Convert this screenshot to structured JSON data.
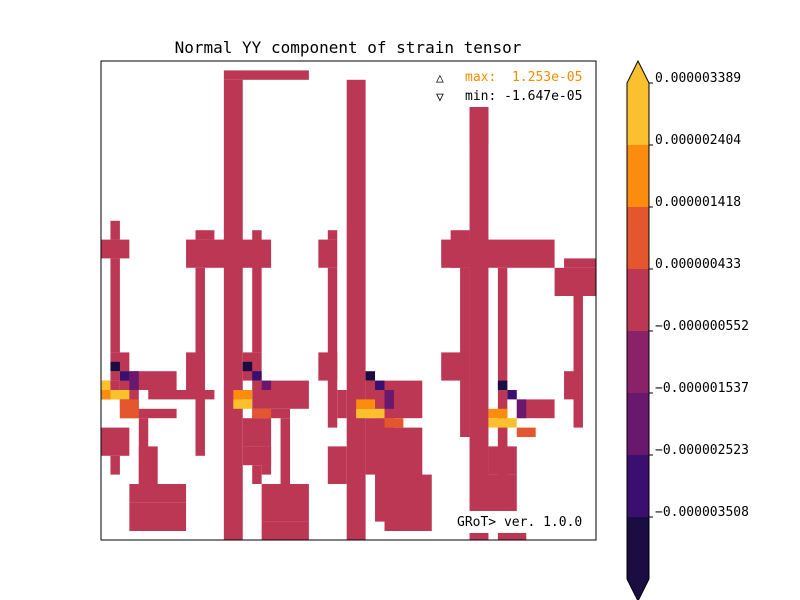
{
  "chart_data": {
    "type": "heatmap",
    "title": "Normal YY component of strain tensor",
    "max_label": "max:  1.253e-05",
    "min_label": "min: -1.647e-05",
    "max_symbol": "△",
    "min_symbol": "▽",
    "version_label": "GRoT> ver. 1.0.0",
    "colorbar": {
      "tick_labels": [
        "0.000003389",
        "0.000002404",
        "0.000001418",
        "0.000000433",
        "−0.000000552",
        "−0.000001537",
        "−0.000002523",
        "−0.000003508"
      ],
      "colors": [
        "#fbc02d",
        "#fb8c0e",
        "#e4572e",
        "#bc3754",
        "#8a226a",
        "#6a176e",
        "#3b0f70",
        "#1b0c41"
      ],
      "extend": "both"
    },
    "grid_size": [
      53,
      51
    ],
    "background_level": 4,
    "cell_groups": [
      {
        "level": 4,
        "cells": [
          [
            13,
            1,
            21,
            1
          ],
          [
            13,
            2,
            14,
            50
          ],
          [
            26,
            2,
            27,
            50
          ],
          [
            39,
            2,
            40,
            50
          ],
          [
            39,
            3,
            40,
            8
          ],
          [
            53,
            5,
            54,
            46
          ],
          [
            1,
            17,
            1,
            18
          ],
          [
            0,
            19,
            2,
            20
          ],
          [
            1,
            21,
            1,
            30
          ],
          [
            1,
            31,
            2,
            32
          ],
          [
            2,
            33,
            7,
            34
          ],
          [
            2,
            35,
            3,
            36
          ],
          [
            5,
            35,
            11,
            35
          ],
          [
            2,
            37,
            7,
            37
          ],
          [
            0,
            39,
            2,
            41
          ],
          [
            1,
            42,
            1,
            43
          ],
          [
            4,
            38,
            4,
            44
          ],
          [
            4,
            41,
            5,
            44
          ],
          [
            3,
            45,
            8,
            46
          ],
          [
            3,
            47,
            8,
            49
          ],
          [
            10,
            18,
            11,
            18
          ],
          [
            9,
            19,
            17,
            21
          ],
          [
            10,
            22,
            10,
            41
          ],
          [
            9,
            31,
            10,
            34
          ],
          [
            16,
            18,
            16,
            30
          ],
          [
            15,
            31,
            16,
            33
          ],
          [
            16,
            34,
            21,
            36
          ],
          [
            16,
            37,
            19,
            37
          ],
          [
            15,
            38,
            17,
            40
          ],
          [
            15,
            41,
            17,
            42
          ],
          [
            16,
            43,
            16,
            44
          ],
          [
            17,
            41,
            17,
            43
          ],
          [
            19,
            38,
            19,
            47
          ],
          [
            17,
            45,
            21,
            48
          ],
          [
            17,
            49,
            21,
            50
          ],
          [
            23,
            19,
            24,
            21
          ],
          [
            24,
            18,
            24,
            18
          ],
          [
            24,
            22,
            24,
            38
          ],
          [
            23,
            31,
            24,
            33
          ],
          [
            28,
            34,
            33,
            37
          ],
          [
            28,
            38,
            30,
            43
          ],
          [
            25,
            35,
            25,
            37
          ],
          [
            24,
            41,
            25,
            44
          ],
          [
            29,
            38,
            30,
            48
          ],
          [
            30,
            39,
            33,
            49
          ],
          [
            31,
            44,
            34,
            49
          ],
          [
            37,
            18,
            38,
            21
          ],
          [
            36,
            19,
            47,
            21
          ],
          [
            38,
            22,
            38,
            39
          ],
          [
            36,
            31,
            38,
            33
          ],
          [
            42,
            22,
            42,
            40
          ],
          [
            44,
            36,
            47,
            37
          ],
          [
            42,
            38,
            42,
            47
          ],
          [
            41,
            41,
            43,
            43
          ],
          [
            40,
            44,
            43,
            49
          ],
          [
            42,
            50,
            44,
            50
          ],
          [
            49,
            21,
            55,
            21
          ],
          [
            48,
            22,
            56,
            24
          ],
          [
            50,
            25,
            50,
            38
          ],
          [
            49,
            33,
            50,
            35
          ],
          [
            54,
            32,
            59,
            37
          ],
          [
            56,
            35,
            56,
            46
          ],
          [
            55,
            38,
            56,
            42
          ],
          [
            53,
            43,
            56,
            46
          ],
          [
            57,
            36,
            60,
            38
          ],
          [
            59,
            43,
            62,
            46
          ],
          [
            60,
            30,
            60,
            35
          ],
          [
            62,
            21,
            62,
            37
          ],
          [
            61,
            22,
            63,
            25
          ],
          [
            59,
            33,
            62,
            35
          ],
          [
            62,
            38,
            63,
            48
          ],
          [
            60,
            38,
            61,
            41
          ],
          [
            65,
            21,
            66,
            38
          ],
          [
            64,
            22,
            67,
            24
          ],
          [
            66,
            32,
            67,
            34
          ],
          [
            66,
            38,
            67,
            50
          ],
          [
            69,
            32,
            74,
            37
          ],
          [
            71,
            35,
            72,
            39
          ],
          [
            68,
            39,
            72,
            49
          ],
          [
            73,
            38,
            75,
            43
          ],
          [
            74,
            33,
            79,
            37
          ],
          [
            76,
            38,
            79,
            42
          ],
          [
            78,
            30,
            79,
            37
          ],
          [
            78,
            38,
            79,
            46
          ],
          [
            76,
            38,
            78,
            46
          ],
          [
            77,
            41,
            79,
            50
          ],
          [
            84,
            20,
            84,
            46
          ],
          [
            83,
            21,
            84,
            50
          ],
          [
            81,
            21,
            86,
            23
          ],
          [
            82,
            24,
            83,
            39
          ],
          [
            81,
            32,
            83,
            34
          ],
          [
            85,
            34,
            87,
            37
          ],
          [
            84,
            38,
            87,
            49
          ],
          [
            83,
            38,
            87,
            39
          ],
          [
            89,
            36,
            94,
            37
          ],
          [
            89,
            38,
            90,
            44
          ],
          [
            88,
            40,
            90,
            43
          ],
          [
            88,
            46,
            92,
            49
          ],
          [
            87,
            49,
            90,
            50
          ],
          [
            91,
            38,
            91,
            43
          ],
          [
            93,
            38,
            94,
            43
          ],
          [
            92,
            44,
            94,
            46
          ],
          [
            96,
            22,
            97,
            28
          ],
          [
            95,
            23,
            97,
            25
          ],
          [
            97,
            28,
            97,
            43
          ],
          [
            96,
            36,
            97,
            37
          ],
          [
            95,
            38,
            97,
            48
          ],
          [
            95,
            43,
            96,
            46
          ],
          [
            98,
            38,
            98,
            38
          ],
          [
            95,
            47,
            97,
            50
          ],
          [
            0,
            34,
            1,
            35
          ],
          [
            1,
            33,
            1,
            33
          ],
          [
            2,
            36,
            2,
            36
          ]
        ]
      },
      {
        "level": 0,
        "cells": [
          [
            1,
            32,
            1,
            32
          ],
          [
            15,
            32,
            15,
            32
          ],
          [
            28,
            33,
            28,
            33
          ],
          [
            42,
            34,
            42,
            34
          ]
        ]
      },
      {
        "level": 1,
        "cells": [
          [
            2,
            33,
            2,
            33
          ],
          [
            16,
            33,
            16,
            33
          ],
          [
            29,
            34,
            29,
            34
          ],
          [
            43,
            35,
            43,
            35
          ]
        ]
      },
      {
        "level": 2,
        "cells": [
          [
            3,
            33,
            3,
            34
          ],
          [
            17,
            34,
            17,
            34
          ],
          [
            30,
            35,
            30,
            36
          ],
          [
            44,
            36,
            44,
            37
          ]
        ]
      },
      {
        "level": 6,
        "cells": [
          [
            0,
            35,
            1,
            35
          ],
          [
            14,
            35,
            15,
            35
          ],
          [
            27,
            36,
            28,
            36
          ],
          [
            41,
            37,
            42,
            37
          ]
        ]
      },
      {
        "level": 7,
        "cells": [
          [
            0,
            34,
            0,
            34
          ],
          [
            1,
            35,
            2,
            35
          ],
          [
            14,
            36,
            15,
            36
          ],
          [
            27,
            37,
            29,
            37
          ],
          [
            41,
            38,
            43,
            38
          ]
        ]
      },
      {
        "level": 5,
        "cells": [
          [
            2,
            36,
            3,
            37
          ],
          [
            16,
            37,
            17,
            37
          ],
          [
            30,
            38,
            31,
            38
          ],
          [
            44,
            39,
            45,
            39
          ]
        ]
      }
    ]
  }
}
